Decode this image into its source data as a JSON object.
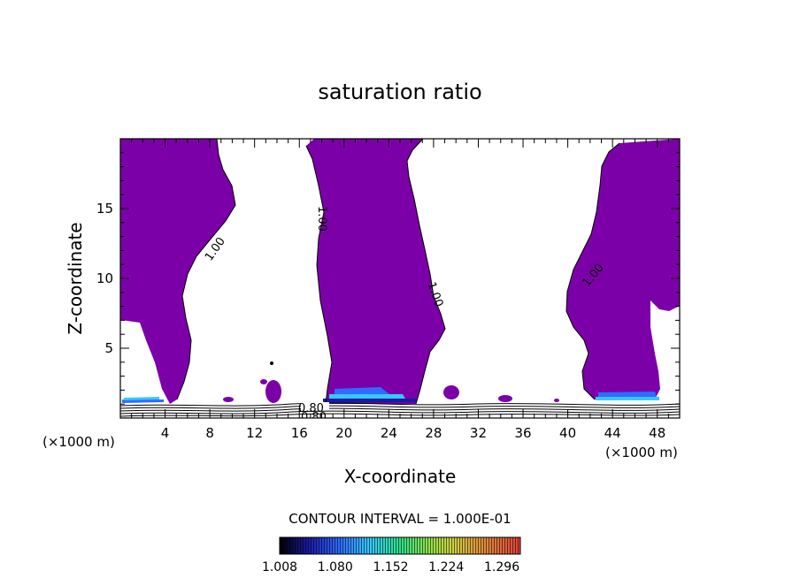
{
  "chart_data": {
    "type": "heatmap",
    "title": "saturation ratio",
    "xlabel": "X-coordinate",
    "ylabel": "Z-coordinate",
    "x_unit_left": "(×1000 m)",
    "x_unit_right": "(×1000 m)",
    "xlim": [
      0,
      50
    ],
    "ylim": [
      0,
      20
    ],
    "x_ticks": [
      "4",
      "8",
      "12",
      "16",
      "20",
      "24",
      "28",
      "32",
      "36",
      "40",
      "44",
      "48"
    ],
    "y_ticks": [
      "5",
      "10",
      "15"
    ],
    "contour_interval_text": "CONTOUR INTERVAL = 1.000E-01",
    "contour_labels": [
      "1.00",
      "1.00",
      "1.00",
      "1.00",
      "0.80",
      "0.80"
    ],
    "colorbar": {
      "labels": [
        "1.008",
        "1.080",
        "1.152",
        "1.224",
        "1.296"
      ],
      "min": 1.008,
      "max": 1.32
    },
    "fill_color": "#7c00a8",
    "colors": [
      "#000000",
      "#1a1aa6",
      "#2f6bff",
      "#36c8ff",
      "#2ee08a",
      "#8ee04a",
      "#d0d040",
      "#e08a3a",
      "#e0403a"
    ]
  }
}
